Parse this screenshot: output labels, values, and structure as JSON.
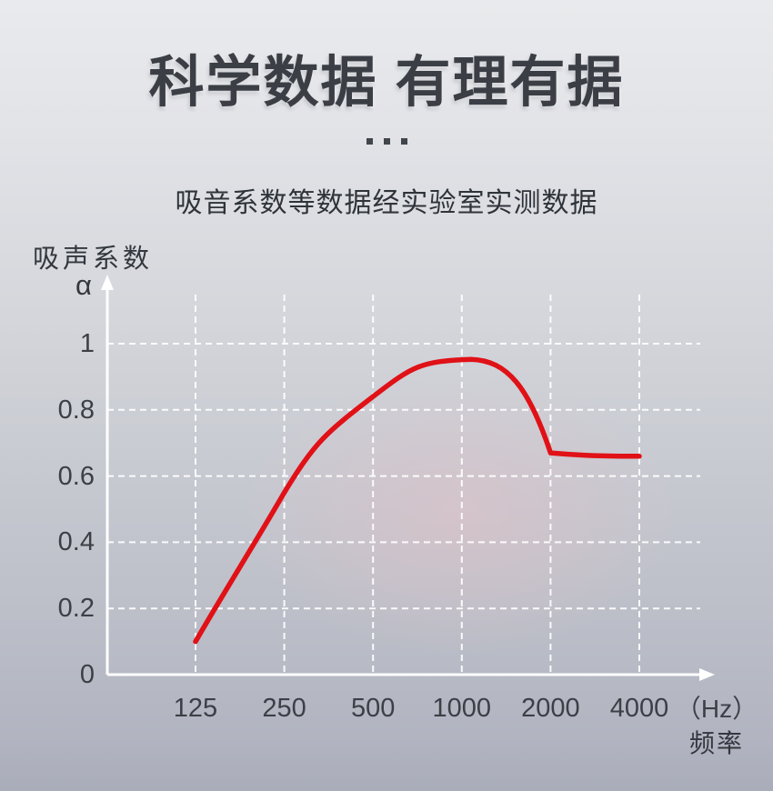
{
  "header": {
    "title": "科学数据 有理有据",
    "subtitle": "吸音系数等数据经实验室实测数据",
    "separator_dots": 3
  },
  "chart": {
    "y_axis_title": "吸声系数",
    "y_axis_symbol": "α",
    "x_axis_unit": "（Hz）",
    "x_axis_title": "频率"
  },
  "chart_data": {
    "type": "line",
    "title": "",
    "categories": [
      "125",
      "250",
      "500",
      "1000",
      "2000",
      "4000"
    ],
    "x_unit": "Hz",
    "series": [
      {
        "name": "吸声系数 α",
        "values": [
          0.1,
          0.55,
          0.84,
          0.95,
          0.67,
          0.66
        ]
      }
    ],
    "y_ticks": [
      1,
      0.8,
      0.6,
      0.4,
      0.2,
      0
    ],
    "ylim": [
      0,
      1.1
    ],
    "xlabel": "频率（Hz）",
    "ylabel": "吸声系数 α",
    "grid": "dashed",
    "legend": "none",
    "line_color": "#e01117",
    "peak": {
      "category": "1000",
      "value": 0.95
    }
  },
  "colors": {
    "accent_red": "#e01117",
    "text_dark": "#3a3e45",
    "grid_white": "#ffffff"
  }
}
